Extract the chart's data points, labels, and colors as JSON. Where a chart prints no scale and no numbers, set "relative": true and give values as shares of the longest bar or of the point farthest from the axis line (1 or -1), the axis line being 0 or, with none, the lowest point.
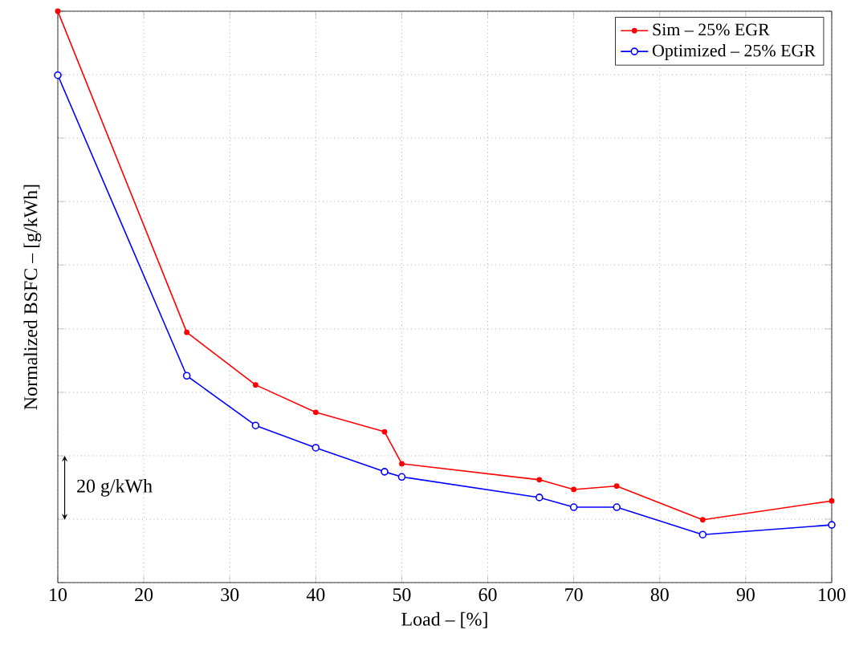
{
  "chart_data": {
    "type": "line",
    "xlabel": "Load – [%]",
    "ylabel": "Normalized BSFC – [g/kWh]",
    "relative": true,
    "x": [
      10,
      25,
      33,
      40,
      48,
      50,
      66,
      70,
      75,
      85,
      100
    ],
    "xlim": [
      10,
      100
    ],
    "xticks": [
      10,
      20,
      30,
      40,
      50,
      60,
      70,
      80,
      90,
      100
    ],
    "series": [
      {
        "name": "Sim – 25% EGR",
        "color": "#ff0000",
        "values": [
          1,
          0.438,
          0.346,
          0.298,
          0.264,
          0.208,
          0.18,
          0.163,
          0.169,
          0.11,
          0.143
        ]
      },
      {
        "name": "Optimized – 25% EGR",
        "color": "#0000ff",
        "values": [
          0.888,
          0.362,
          0.275,
          0.236,
          0.194,
          0.185,
          0.149,
          0.132,
          0.132,
          0.084,
          0.101
        ]
      }
    ],
    "annotations": [
      "20 g/kWh"
    ],
    "grid": true,
    "legend": "top right",
    "marker": "circle",
    "line_style": "solid",
    "tick_labels": "x"
  }
}
